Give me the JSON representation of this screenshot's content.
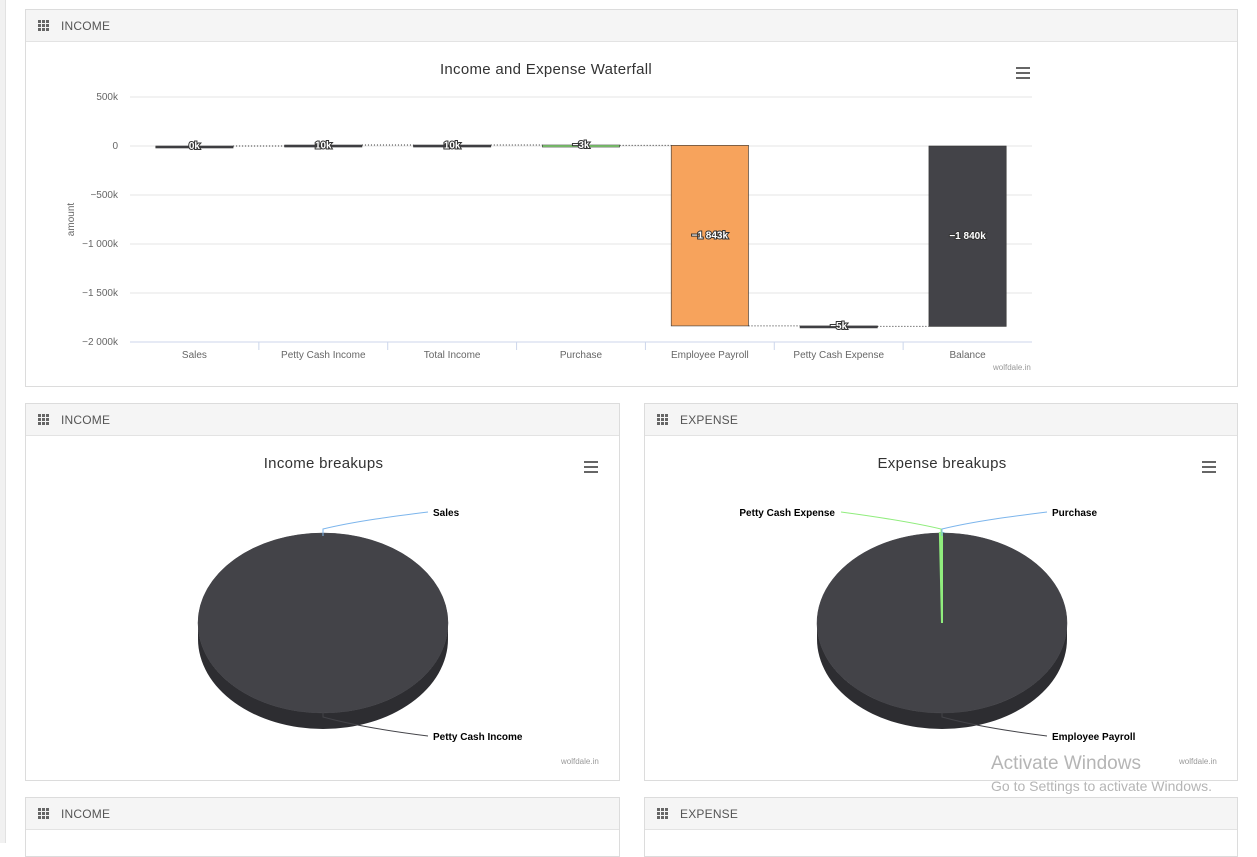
{
  "panels": {
    "top": {
      "title": "INCOME"
    },
    "mid_left": {
      "title": "INCOME"
    },
    "mid_right": {
      "title": "EXPENSE"
    },
    "bottom_left": {
      "title": "INCOME"
    },
    "bottom_right": {
      "title": "EXPENSE"
    }
  },
  "credit": "wolfdale.in",
  "watermark": {
    "line1": "Activate Windows",
    "line2": "Go to Settings to activate Windows."
  },
  "icons": {
    "panel": "grid-icon",
    "menu": "hamburger-menu-icon"
  },
  "colors": {
    "dark_bar": "#434348",
    "payroll_bar": "#f7a35c",
    "purchase_bar": "#90ed7d",
    "connector": "#333333",
    "pie_dark": "#434348",
    "pie_side": "#2d2d31",
    "leader_blue": "#7cb5ec",
    "leader_green": "#90ed7d",
    "leader_dark": "#434348"
  },
  "chart_data": [
    {
      "type": "waterfall",
      "title": "Income and Expense Waterfall",
      "ylabel": "amount",
      "ylim": [
        -2000,
        500
      ],
      "yticks": [
        500,
        0,
        -500,
        -1000,
        -1500,
        -2000
      ],
      "ytick_labels": [
        "500k",
        "0",
        "−500k",
        "−1 000k",
        "−1 500k",
        "−2 000k"
      ],
      "categories": [
        "Sales",
        "Petty Cash Income",
        "Total Income",
        "Purchase",
        "Employee Payroll",
        "Petty Cash Expense",
        "Balance"
      ],
      "values": [
        0,
        10,
        10,
        -3,
        -1843,
        -5,
        -1840
      ],
      "is_sum": [
        false,
        false,
        true,
        false,
        false,
        false,
        true
      ],
      "data_labels": [
        "0k",
        "10k",
        "10k",
        "−3k",
        "−1 843k",
        "−5k",
        "−1 840k"
      ],
      "bar_colors": [
        "#434348",
        "#434348",
        "#434348",
        "#90ed7d",
        "#f7a35c",
        "#434348",
        "#434348"
      ],
      "grid": true,
      "legend": false
    },
    {
      "type": "pie",
      "title": "Income breakups",
      "labels": [
        "Sales",
        "Petty Cash Income"
      ],
      "values": [
        0,
        10
      ],
      "colors": [
        "#7cb5ec",
        "#434348"
      ],
      "3d": true
    },
    {
      "type": "pie",
      "title": "Expense breakups",
      "labels": [
        "Purchase",
        "Employee Payroll",
        "Petty Cash Expense"
      ],
      "values": [
        3,
        1843,
        5
      ],
      "colors": [
        "#7cb5ec",
        "#434348",
        "#90ed7d"
      ],
      "3d": true
    }
  ]
}
